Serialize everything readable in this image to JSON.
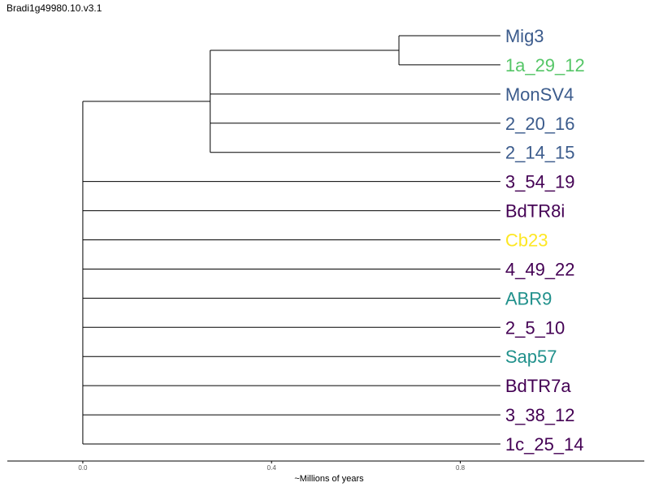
{
  "title": "Bradi1g49980.10.v3.1",
  "chart_data": {
    "type": "dendrogram",
    "xlabel": "~Millions of years",
    "xlim": [
      -0.16,
      1.19
    ],
    "xticks": [
      0.0,
      0.4,
      0.8
    ],
    "xtick_labels": [
      "0.0",
      "0.4",
      "0.8"
    ],
    "grid": false,
    "leaf_depth": 0.885,
    "leaves": [
      {
        "name": "Mig3",
        "color": "#3b5b8c"
      },
      {
        "name": "1a_29_12",
        "color": "#55c667"
      },
      {
        "name": "MonSV4",
        "color": "#3b5b8c"
      },
      {
        "name": "2_20_16",
        "color": "#3b5b8c"
      },
      {
        "name": "2_14_15",
        "color": "#3b5b8c"
      },
      {
        "name": "3_54_19",
        "color": "#440154"
      },
      {
        "name": "BdTR8i",
        "color": "#440154"
      },
      {
        "name": "Cb23",
        "color": "#fde725"
      },
      {
        "name": "4_49_22",
        "color": "#440154"
      },
      {
        "name": "ABR9",
        "color": "#21918c"
      },
      {
        "name": "2_5_10",
        "color": "#440154"
      },
      {
        "name": "Sap57",
        "color": "#21918c"
      },
      {
        "name": "BdTR7a",
        "color": "#440154"
      },
      {
        "name": "3_38_12",
        "color": "#440154"
      },
      {
        "name": "1c_25_14",
        "color": "#440154"
      }
    ],
    "clades": [
      {
        "id": "root",
        "height": 0.0,
        "children": [
          "cladeA",
          "3_54_19",
          "BdTR8i",
          "Cb23",
          "4_49_22",
          "ABR9",
          "2_5_10",
          "Sap57",
          "BdTR7a",
          "3_38_12",
          "1c_25_14"
        ]
      },
      {
        "id": "cladeA",
        "height": 0.27,
        "children": [
          "cladeB",
          "MonSV4",
          "2_20_16",
          "2_14_15"
        ]
      },
      {
        "id": "cladeB",
        "height": 0.67,
        "children": [
          "Mig3",
          "1a_29_12"
        ]
      }
    ]
  }
}
